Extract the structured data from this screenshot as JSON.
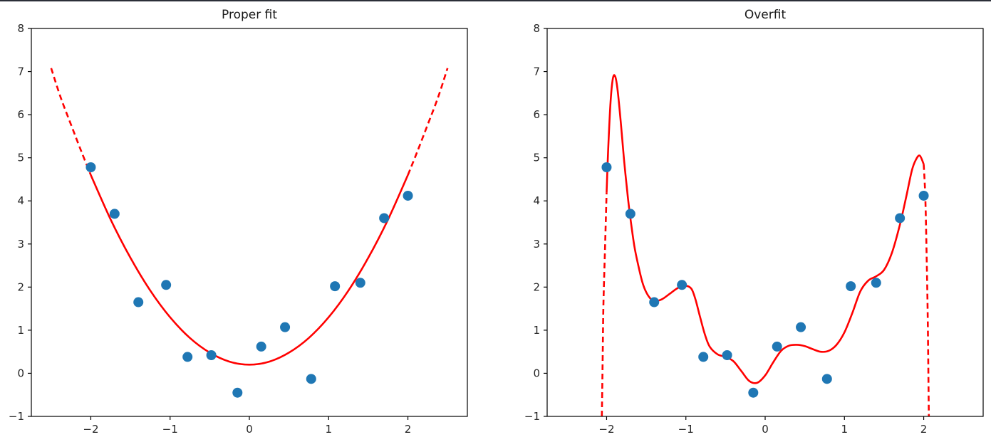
{
  "page": {
    "background": "#ffffff"
  },
  "chart_data": [
    {
      "type": "scatter",
      "title": "Proper fit",
      "xlabel": "",
      "ylabel": "",
      "xlim": [
        -2.75,
        2.75
      ],
      "ylim": [
        -1,
        8
      ],
      "xticks": [
        -2,
        -1,
        0,
        1,
        2
      ],
      "yticks": [
        -1,
        0,
        1,
        2,
        3,
        4,
        5,
        6,
        7,
        8
      ],
      "grid": false,
      "legend": null,
      "scatter": {
        "name": "noisy-data-points",
        "color": "#1f77b4",
        "marker_radius": 7,
        "points": [
          [
            -2.0,
            4.78
          ],
          [
            -1.7,
            3.7
          ],
          [
            -1.4,
            1.65
          ],
          [
            -1.05,
            2.05
          ],
          [
            -0.78,
            0.38
          ],
          [
            -0.48,
            0.42
          ],
          [
            -0.15,
            -0.45
          ],
          [
            0.15,
            0.62
          ],
          [
            0.45,
            1.07
          ],
          [
            0.78,
            -0.13
          ],
          [
            1.08,
            2.02
          ],
          [
            1.4,
            2.1
          ],
          [
            1.7,
            3.6
          ],
          [
            2.0,
            4.12
          ]
        ]
      },
      "curves": [
        {
          "name": "fit-extrapolation-left",
          "style": "dashed",
          "color": "#ff0000",
          "points": [
            [
              -2.5,
              7.08
            ],
            [
              -2.38,
              6.4
            ],
            [
              -2.25,
              5.77
            ],
            [
              -2.12,
              5.15
            ],
            [
              -2.0,
              4.6
            ]
          ]
        },
        {
          "name": "quadratic-fit",
          "style": "solid",
          "color": "#ff0000",
          "points": [
            [
              -2.0,
              4.6
            ],
            [
              -1.75,
              3.57
            ],
            [
              -1.5,
              2.68
            ],
            [
              -1.25,
              1.92
            ],
            [
              -1.0,
              1.3
            ],
            [
              -0.75,
              0.82
            ],
            [
              -0.5,
              0.48
            ],
            [
              -0.25,
              0.27
            ],
            [
              0.0,
              0.2
            ],
            [
              0.25,
              0.27
            ],
            [
              0.5,
              0.48
            ],
            [
              0.75,
              0.82
            ],
            [
              1.0,
              1.3
            ],
            [
              1.25,
              1.92
            ],
            [
              1.5,
              2.68
            ],
            [
              1.75,
              3.57
            ],
            [
              2.0,
              4.6
            ]
          ]
        },
        {
          "name": "fit-extrapolation-right",
          "style": "dashed",
          "color": "#ff0000",
          "points": [
            [
              2.0,
              4.6
            ],
            [
              2.12,
              5.15
            ],
            [
              2.25,
              5.77
            ],
            [
              2.38,
              6.4
            ],
            [
              2.5,
              7.08
            ]
          ]
        }
      ]
    },
    {
      "type": "scatter",
      "title": "Overfit",
      "xlabel": "",
      "ylabel": "",
      "xlim": [
        -2.75,
        2.75
      ],
      "ylim": [
        -1,
        8
      ],
      "xticks": [
        -2,
        -1,
        0,
        1,
        2
      ],
      "yticks": [
        -1,
        0,
        1,
        2,
        3,
        4,
        5,
        6,
        7,
        8
      ],
      "grid": false,
      "legend": null,
      "scatter": {
        "name": "noisy-data-points",
        "color": "#1f77b4",
        "marker_radius": 7,
        "points": [
          [
            -2.0,
            4.78
          ],
          [
            -1.7,
            3.7
          ],
          [
            -1.4,
            1.65
          ],
          [
            -1.05,
            2.05
          ],
          [
            -0.78,
            0.38
          ],
          [
            -0.48,
            0.42
          ],
          [
            -0.15,
            -0.45
          ],
          [
            0.15,
            0.62
          ],
          [
            0.45,
            1.07
          ],
          [
            0.78,
            -0.13
          ],
          [
            1.08,
            2.02
          ],
          [
            1.4,
            2.1
          ],
          [
            1.7,
            3.6
          ],
          [
            2.0,
            4.12
          ]
        ]
      },
      "curves": [
        {
          "name": "overfit-extrapolation-left",
          "style": "dashed",
          "color": "#ff0000",
          "points": [
            [
              -2.06,
              -1.0
            ],
            [
              -2.05,
              0.3
            ],
            [
              -2.04,
              1.6
            ],
            [
              -2.02,
              2.9
            ],
            [
              -2.0,
              4.2
            ]
          ]
        },
        {
          "name": "high-degree-polynomial-fit",
          "style": "solid",
          "color": "#ff0000",
          "points": [
            [
              -2.0,
              4.2
            ],
            [
              -1.98,
              5.2
            ],
            [
              -1.95,
              6.3
            ],
            [
              -1.92,
              6.85
            ],
            [
              -1.89,
              6.88
            ],
            [
              -1.86,
              6.55
            ],
            [
              -1.82,
              5.8
            ],
            [
              -1.78,
              4.95
            ],
            [
              -1.73,
              4.05
            ],
            [
              -1.7,
              3.6
            ],
            [
              -1.65,
              2.95
            ],
            [
              -1.6,
              2.5
            ],
            [
              -1.55,
              2.12
            ],
            [
              -1.5,
              1.88
            ],
            [
              -1.44,
              1.72
            ],
            [
              -1.38,
              1.68
            ],
            [
              -1.3,
              1.72
            ],
            [
              -1.2,
              1.85
            ],
            [
              -1.1,
              1.98
            ],
            [
              -1.0,
              2.03
            ],
            [
              -0.93,
              1.96
            ],
            [
              -0.88,
              1.72
            ],
            [
              -0.82,
              1.3
            ],
            [
              -0.76,
              0.9
            ],
            [
              -0.7,
              0.62
            ],
            [
              -0.6,
              0.44
            ],
            [
              -0.5,
              0.38
            ],
            [
              -0.4,
              0.28
            ],
            [
              -0.3,
              0.05
            ],
            [
              -0.2,
              -0.18
            ],
            [
              -0.1,
              -0.22
            ],
            [
              0.0,
              -0.05
            ],
            [
              0.1,
              0.25
            ],
            [
              0.2,
              0.52
            ],
            [
              0.3,
              0.64
            ],
            [
              0.4,
              0.66
            ],
            [
              0.5,
              0.63
            ],
            [
              0.6,
              0.56
            ],
            [
              0.7,
              0.5
            ],
            [
              0.8,
              0.52
            ],
            [
              0.9,
              0.66
            ],
            [
              1.0,
              0.95
            ],
            [
              1.1,
              1.4
            ],
            [
              1.2,
              1.9
            ],
            [
              1.3,
              2.15
            ],
            [
              1.4,
              2.25
            ],
            [
              1.5,
              2.4
            ],
            [
              1.6,
              2.8
            ],
            [
              1.7,
              3.45
            ],
            [
              1.78,
              4.1
            ],
            [
              1.85,
              4.7
            ],
            [
              1.9,
              4.95
            ],
            [
              1.95,
              5.05
            ],
            [
              2.0,
              4.85
            ]
          ]
        },
        {
          "name": "overfit-extrapolation-right",
          "style": "dashed",
          "color": "#ff0000",
          "points": [
            [
              2.0,
              4.85
            ],
            [
              2.02,
              4.1
            ],
            [
              2.035,
              2.9
            ],
            [
              2.05,
              1.4
            ],
            [
              2.06,
              -0.2
            ],
            [
              2.065,
              -1.0
            ]
          ]
        }
      ]
    }
  ]
}
